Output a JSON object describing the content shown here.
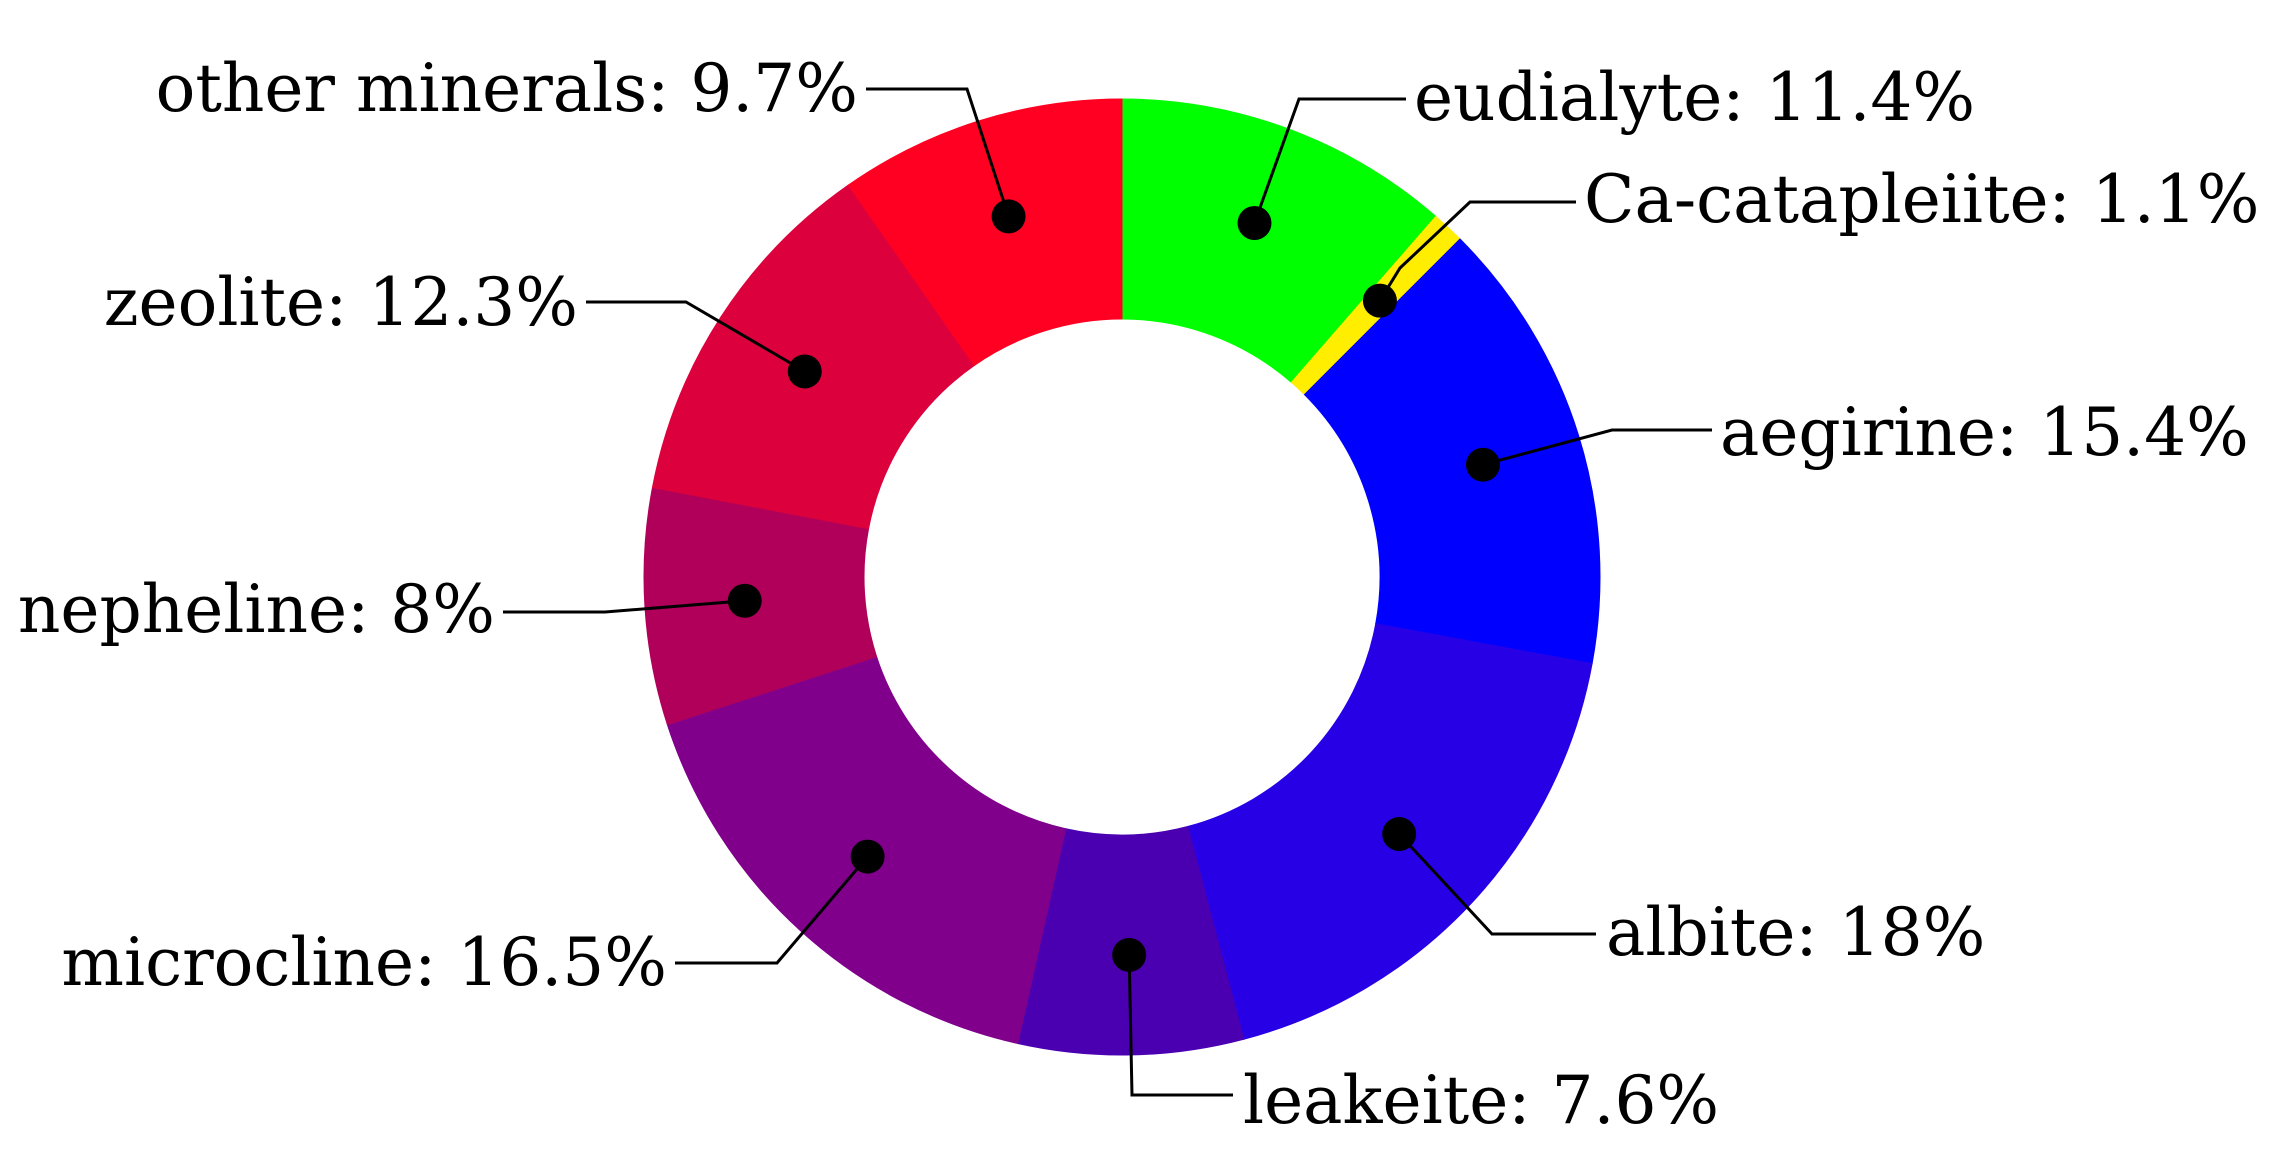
{
  "chart_data": {
    "type": "pie",
    "style": "donut",
    "units": "%",
    "slices": [
      {
        "label": "eudialyte",
        "value": 11.4,
        "color": "#00ff00",
        "text": "eudialyte: 11.4%"
      },
      {
        "label": "Ca-catapleiite",
        "value": 1.1,
        "color": "#ffee00",
        "text": "Ca-catapleiite: 1.1%"
      },
      {
        "label": "aegirine",
        "value": 15.4,
        "color": "#0000ff",
        "text": "aegirine: 15.4%"
      },
      {
        "label": "albite",
        "value": 18,
        "color": "#2800e6",
        "text": "albite: 18%"
      },
      {
        "label": "leakeite",
        "value": 7.6,
        "color": "#4a00b0",
        "text": "leakeite: 7.6%"
      },
      {
        "label": "microcline",
        "value": 16.5,
        "color": "#80008c",
        "text": "microcline: 16.5%"
      },
      {
        "label": "nepheline",
        "value": 8,
        "color": "#b0005a",
        "text": "nepheline: 8%"
      },
      {
        "label": "zeolite",
        "value": 12.3,
        "color": "#dc003c",
        "text": "zeolite: 12.3%"
      },
      {
        "label": "other minerals",
        "value": 9.7,
        "color": "#ff0022",
        "text": "other minerals: 9.7%"
      }
    ]
  }
}
